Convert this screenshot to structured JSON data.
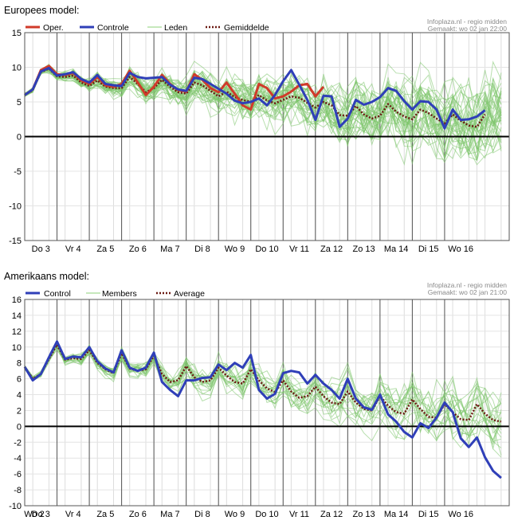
{
  "panels": [
    {
      "heading": "Europees model:",
      "credit_line1": "Infoplaza.nl - regio midden",
      "credit_line2": "Gemaakt: wo 02 jan 22:00",
      "legend": [
        {
          "label": "Oper.",
          "color": "#d03a2a",
          "style": "solid"
        },
        {
          "label": "Controle",
          "color": "#2f3fb8",
          "style": "solid"
        },
        {
          "label": "Leden",
          "color": "#8cd07a",
          "style": "thin"
        },
        {
          "label": "Gemiddelde",
          "color": "#6b1a12",
          "style": "dotted"
        }
      ]
    },
    {
      "heading": "Amerikaans model:",
      "credit_line1": "Infoplaza.nl - regio midden",
      "credit_line2": "Gemaakt: wo 02 jan 21:00",
      "legend": [
        {
          "label": "Control",
          "color": "#2f3fb8",
          "style": "solid"
        },
        {
          "label": "Members",
          "color": "#8cd07a",
          "style": "thin"
        },
        {
          "label": "Average",
          "color": "#6b1a12",
          "style": "dotted"
        }
      ]
    }
  ],
  "chart_data": [
    {
      "type": "line",
      "title": "Europees model:",
      "ylim": [
        -15,
        15
      ],
      "yticks": [
        15,
        10,
        5,
        0,
        -5,
        -10,
        -15
      ],
      "x_unit": "6-hour steps",
      "x_range": [
        0,
        60
      ],
      "xtick_labels": [
        "Do 3",
        "Vr 4",
        "Za 5",
        "Zo 6",
        "Ma 7",
        "Di 8",
        "Wo 9",
        "Do 10",
        "Vr 11",
        "Za 12",
        "Zo 13",
        "Ma 14",
        "Di 15",
        "Wo 16"
      ],
      "xtick_positions": [
        2,
        6,
        10,
        14,
        18,
        22,
        26,
        30,
        34,
        38,
        42,
        46,
        50,
        54
      ],
      "zero_line": true,
      "grid": true,
      "series": [
        {
          "name": "Oper.",
          "color": "#d03a2a",
          "width": 3,
          "values": [
            6.0,
            6.8,
            9.6,
            10.2,
            9.0,
            8.9,
            9.2,
            8.1,
            7.6,
            8.6,
            7.4,
            7.2,
            7.6,
            9.5,
            7.8,
            6.0,
            7.2,
            8.9,
            7.6,
            6.7,
            6.5,
            9.0,
            8.2,
            7.0,
            6.4,
            7.8,
            6.2,
            4.5,
            3.9,
            7.6,
            7.0,
            5.5,
            5.8,
            6.5,
            7.4,
            7.6,
            5.8,
            7.2
          ]
        },
        {
          "name": "Controle",
          "color": "#2f3fb8",
          "width": 3,
          "values": [
            6.0,
            6.8,
            9.4,
            9.9,
            8.8,
            9.0,
            9.3,
            8.3,
            7.8,
            8.9,
            7.6,
            7.4,
            7.3,
            9.2,
            8.6,
            8.4,
            8.5,
            8.6,
            7.5,
            6.8,
            6.6,
            8.5,
            8.3,
            7.6,
            6.9,
            6.2,
            5.2,
            4.8,
            5.0,
            5.5,
            4.5,
            6.0,
            8.0,
            9.6,
            7.5,
            5.3,
            2.4,
            5.9,
            5.8,
            1.4,
            2.6,
            5.3,
            4.6,
            5.0,
            5.7,
            7.0,
            6.6,
            5.1,
            3.9,
            5.1,
            5.0,
            3.9,
            1.2,
            3.9,
            2.4,
            2.5,
            2.9,
            3.8
          ]
        },
        {
          "name": "Gemiddelde",
          "color": "#6b1a12",
          "width": 2.5,
          "dotted": true,
          "values": [
            6.0,
            6.7,
            9.3,
            9.8,
            8.7,
            8.6,
            8.8,
            7.8,
            7.3,
            8.1,
            7.2,
            7.0,
            7.0,
            8.6,
            7.6,
            6.4,
            7.0,
            8.2,
            7.2,
            6.4,
            6.2,
            7.8,
            7.4,
            6.6,
            5.8,
            6.5,
            5.7,
            5.3,
            5.0,
            6.0,
            5.2,
            4.8,
            5.3,
            5.8,
            5.6,
            4.9,
            4.2,
            5.0,
            4.5,
            3.1,
            3.0,
            4.4,
            3.2,
            2.6,
            3.0,
            4.7,
            3.6,
            2.9,
            2.5,
            3.9,
            3.4,
            2.6,
            1.9,
            3.2,
            2.3,
            1.6,
            1.4,
            3.2
          ]
        }
      ]
    },
    {
      "type": "line",
      "title": "Amerikaans model:",
      "ylim": [
        -10,
        16
      ],
      "yticks": [
        16,
        14,
        12,
        10,
        8,
        6,
        4,
        2,
        0,
        -2,
        -4,
        -6,
        -8,
        -10
      ],
      "x_unit": "6-hour steps",
      "x_range": [
        0,
        60
      ],
      "xtick_labels": [
        "Wo 2",
        "Do 3",
        "Vr 4",
        "Za 5",
        "Zo 6",
        "Ma 7",
        "Di 8",
        "Wo 9",
        "Do 10",
        "Vr 11",
        "Za 12",
        "Zo 13",
        "Ma 14",
        "Di 15",
        "Wo 16"
      ],
      "xtick_positions": [
        -2,
        2,
        6,
        10,
        14,
        18,
        22,
        26,
        30,
        34,
        38,
        42,
        46,
        50,
        54
      ],
      "zero_line": true,
      "grid": true,
      "series": [
        {
          "name": "Control",
          "color": "#2f3fb8",
          "width": 3,
          "values": [
            7.5,
            5.8,
            6.6,
            8.7,
            10.7,
            8.5,
            8.8,
            8.7,
            10.0,
            8.2,
            7.3,
            6.8,
            9.6,
            7.4,
            7.0,
            7.4,
            9.3,
            5.6,
            4.6,
            3.8,
            5.8,
            5.8,
            6.1,
            6.2,
            7.8,
            7.1,
            8.0,
            7.4,
            9.0,
            4.6,
            3.5,
            4.1,
            6.7,
            7.0,
            6.8,
            5.4,
            6.5,
            5.4,
            4.6,
            3.5,
            6.0,
            3.5,
            2.4,
            2.1,
            4.0,
            1.5,
            0.6,
            -0.7,
            -1.4,
            0.4,
            -0.2,
            1.1,
            3.0,
            1.8,
            -1.5,
            -2.6,
            -1.4,
            -3.9,
            -5.6,
            -6.5
          ]
        },
        {
          "name": "Average",
          "color": "#6b1a12",
          "width": 2.5,
          "dotted": true,
          "values": [
            7.5,
            6.0,
            6.6,
            8.5,
            10.3,
            8.4,
            8.6,
            8.5,
            9.6,
            8.0,
            7.2,
            6.7,
            9.2,
            7.3,
            7.0,
            7.2,
            8.9,
            6.6,
            5.6,
            5.8,
            7.6,
            6.2,
            5.6,
            5.8,
            7.4,
            6.4,
            5.6,
            5.4,
            7.2,
            5.8,
            4.8,
            4.3,
            5.8,
            4.4,
            3.6,
            3.8,
            5.0,
            3.8,
            3.0,
            2.8,
            4.4,
            3.0,
            2.2,
            2.0,
            3.8,
            2.6,
            1.8,
            1.6,
            3.4,
            2.2,
            1.2,
            1.1,
            2.8,
            1.8,
            0.9,
            0.8,
            2.8,
            1.6,
            0.8,
            0.6
          ]
        }
      ]
    }
  ]
}
